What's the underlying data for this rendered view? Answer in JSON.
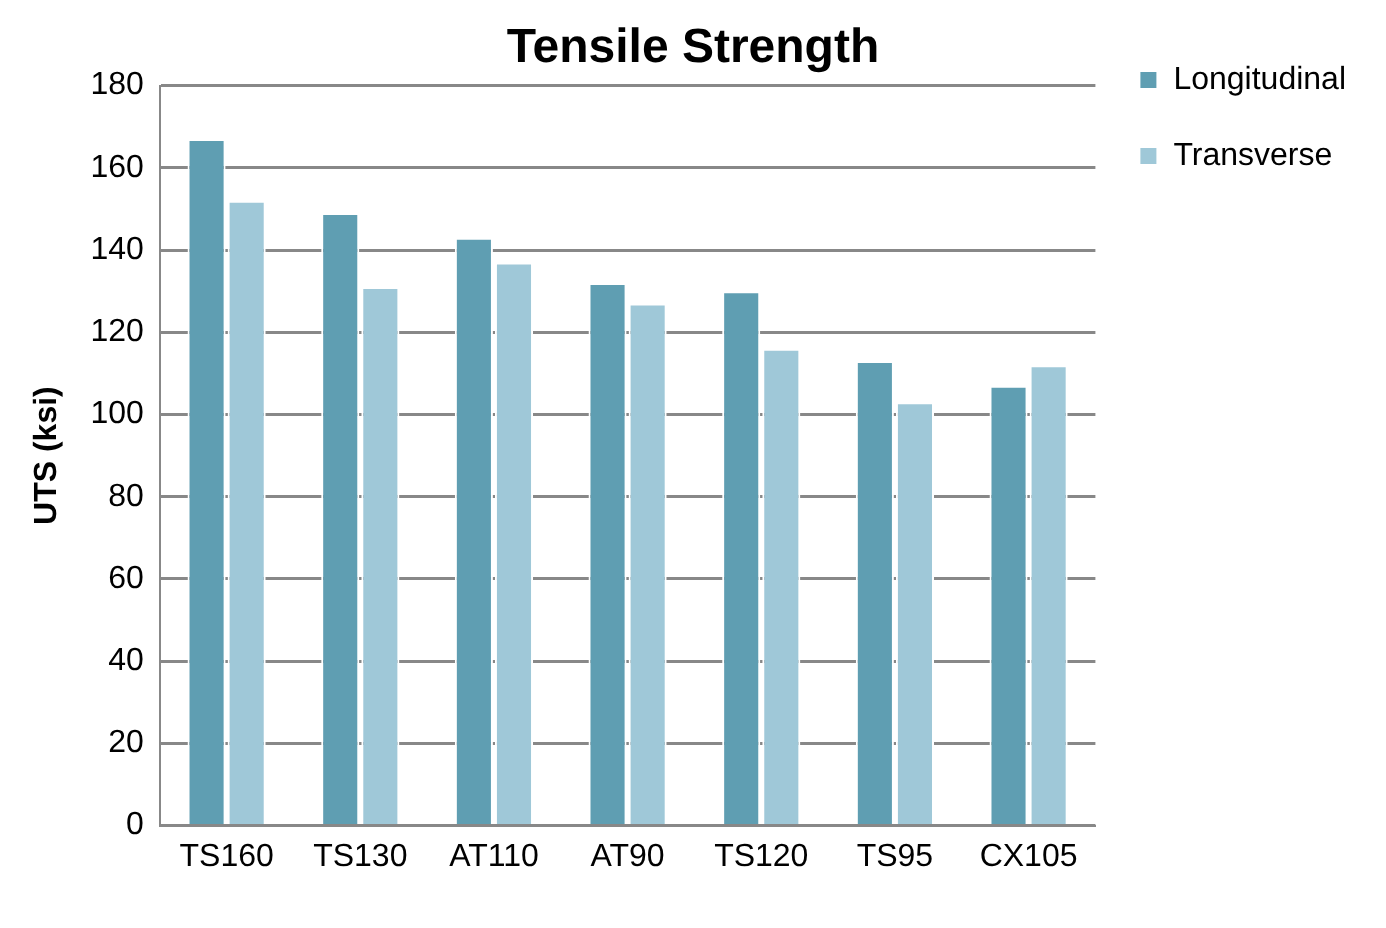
{
  "chart_data": {
    "type": "bar",
    "title": "Tensile Strength",
    "ylabel": "UTS (ksi)",
    "categories": [
      "TS160",
      "TS130",
      "AT110",
      "AT90",
      "TS120",
      "TS95",
      "CX105"
    ],
    "series": [
      {
        "name": "Longitudinal",
        "color": "#5f9eb2",
        "values": [
          167,
          149,
          143,
          132,
          130,
          113,
          107
        ]
      },
      {
        "name": "Transverse",
        "color": "#9fc8d8",
        "values": [
          152,
          131,
          137,
          127,
          116,
          103,
          112
        ]
      }
    ],
    "ylim": [
      0,
      180
    ],
    "yticks": [
      0,
      20,
      40,
      60,
      80,
      100,
      120,
      140,
      160,
      180
    ],
    "grid": "y",
    "legend": "top right"
  }
}
